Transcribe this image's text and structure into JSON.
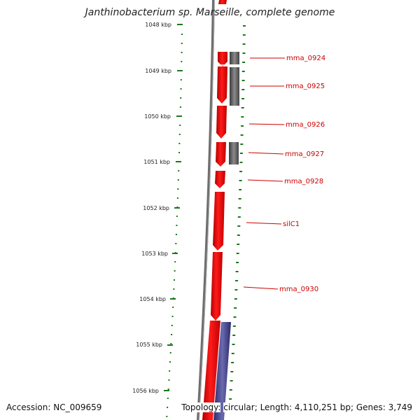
{
  "title": "Janthinobacterium sp. Marseille, complete genome",
  "footer": {
    "accession_label": "Accession:",
    "accession": "NC_009659",
    "topology_label": "Topology:",
    "topology": "circular",
    "length_label": "Length:",
    "length": "4,110,251 bp",
    "genes_label": "Genes:",
    "genes": "3,749"
  },
  "scale_labels": [
    "1048 kbp",
    "1049 kbp",
    "1050 kbp",
    "1051 kbp",
    "1052 kbp",
    "1053 kbp",
    "1054 kbp",
    "1055 kbp",
    "1056 kbp"
  ],
  "gene_labels": [
    "mma_0924",
    "mma_0925",
    "mma_0926",
    "mma_0927",
    "mma_0928",
    "silC1",
    "mma_0930"
  ],
  "colors": {
    "backbone": "#7a7a7a",
    "cds_forward": "#ff0000",
    "gray_feature": "#5f5f5f",
    "blue_feature": "#3f3f8f",
    "gc_skew_dots": "#1a7a1a",
    "label_text": "#cc0000"
  }
}
